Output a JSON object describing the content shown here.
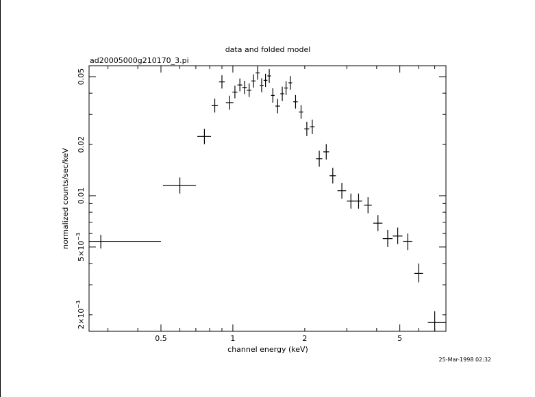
{
  "chart_data": {
    "type": "scatter",
    "title": "data and folded model",
    "subtitle": "ad20005000g210170_3.pi",
    "xlabel": "channel energy (keV)",
    "ylabel": "normalized counts/sec/keV",
    "timestamp": "25-Mar-1998 02:32",
    "x_scale": "log",
    "y_scale": "log",
    "xlim": [
      0.25,
      7.8
    ],
    "ylim": [
      0.0016,
      0.058
    ],
    "x_tick_labels": [
      {
        "value": 0.5,
        "label": "0.5"
      },
      {
        "value": 1,
        "label": "1"
      },
      {
        "value": 2,
        "label": "2"
      },
      {
        "value": 5,
        "label": "5"
      }
    ],
    "y_tick_labels": [
      {
        "value": 0.002,
        "mant": "2×10",
        "exp": "−3"
      },
      {
        "value": 0.005,
        "mant": "5×10",
        "exp": "−3"
      },
      {
        "value": 0.01,
        "label": "0.01"
      },
      {
        "value": 0.02,
        "label": "0.02"
      },
      {
        "value": 0.05,
        "label": "0.05"
      }
    ],
    "grid": false,
    "points": [
      {
        "x": 0.28,
        "xlo": 0.25,
        "xhi": 0.5,
        "y": 0.0054,
        "ylo": 0.0049,
        "yhi": 0.0059
      },
      {
        "x": 0.6,
        "xlo": 0.51,
        "xhi": 0.7,
        "y": 0.0115,
        "ylo": 0.0103,
        "yhi": 0.0128
      },
      {
        "x": 0.76,
        "xlo": 0.71,
        "xhi": 0.81,
        "y": 0.0223,
        "ylo": 0.0201,
        "yhi": 0.0247
      },
      {
        "x": 0.84,
        "xlo": 0.815,
        "xhi": 0.865,
        "y": 0.0338,
        "ylo": 0.0308,
        "yhi": 0.0372
      },
      {
        "x": 0.9,
        "xlo": 0.875,
        "xhi": 0.925,
        "y": 0.0466,
        "ylo": 0.0426,
        "yhi": 0.051
      },
      {
        "x": 0.97,
        "xlo": 0.935,
        "xhi": 1.005,
        "y": 0.0352,
        "ylo": 0.032,
        "yhi": 0.0387
      },
      {
        "x": 1.02,
        "xlo": 0.995,
        "xhi": 1.045,
        "y": 0.0406,
        "ylo": 0.0373,
        "yhi": 0.0443
      },
      {
        "x": 1.07,
        "xlo": 1.045,
        "xhi": 1.095,
        "y": 0.0447,
        "ylo": 0.041,
        "yhi": 0.0488
      },
      {
        "x": 1.12,
        "xlo": 1.095,
        "xhi": 1.145,
        "y": 0.0432,
        "ylo": 0.0395,
        "yhi": 0.0473
      },
      {
        "x": 1.17,
        "xlo": 1.145,
        "xhi": 1.195,
        "y": 0.0416,
        "ylo": 0.038,
        "yhi": 0.0456
      },
      {
        "x": 1.22,
        "xlo": 1.195,
        "xhi": 1.245,
        "y": 0.0472,
        "ylo": 0.0432,
        "yhi": 0.0516
      },
      {
        "x": 1.27,
        "xlo": 1.245,
        "xhi": 1.295,
        "y": 0.0526,
        "ylo": 0.048,
        "yhi": 0.0576
      },
      {
        "x": 1.32,
        "xlo": 1.295,
        "xhi": 1.345,
        "y": 0.0445,
        "ylo": 0.0405,
        "yhi": 0.0489
      },
      {
        "x": 1.37,
        "xlo": 1.345,
        "xhi": 1.395,
        "y": 0.0476,
        "ylo": 0.0435,
        "yhi": 0.052
      },
      {
        "x": 1.42,
        "xlo": 1.395,
        "xhi": 1.445,
        "y": 0.0505,
        "ylo": 0.046,
        "yhi": 0.0554
      },
      {
        "x": 1.47,
        "xlo": 1.445,
        "xhi": 1.495,
        "y": 0.0388,
        "ylo": 0.0352,
        "yhi": 0.0428
      },
      {
        "x": 1.54,
        "xlo": 1.505,
        "xhi": 1.575,
        "y": 0.0336,
        "ylo": 0.0305,
        "yhi": 0.037
      },
      {
        "x": 1.61,
        "xlo": 1.58,
        "xhi": 1.64,
        "y": 0.0397,
        "ylo": 0.036,
        "yhi": 0.0437
      },
      {
        "x": 1.67,
        "xlo": 1.64,
        "xhi": 1.7,
        "y": 0.0429,
        "ylo": 0.039,
        "yhi": 0.0471
      },
      {
        "x": 1.74,
        "xlo": 1.71,
        "xhi": 1.77,
        "y": 0.046,
        "ylo": 0.042,
        "yhi": 0.0504
      },
      {
        "x": 1.83,
        "xlo": 1.79,
        "xhi": 1.87,
        "y": 0.0356,
        "ylo": 0.0325,
        "yhi": 0.039
      },
      {
        "x": 1.93,
        "xlo": 1.89,
        "xhi": 1.97,
        "y": 0.031,
        "ylo": 0.0283,
        "yhi": 0.034
      },
      {
        "x": 2.04,
        "xlo": 1.99,
        "xhi": 2.09,
        "y": 0.0247,
        "ylo": 0.0224,
        "yhi": 0.0272
      },
      {
        "x": 2.15,
        "xlo": 2.1,
        "xhi": 2.2,
        "y": 0.0254,
        "ylo": 0.023,
        "yhi": 0.028
      },
      {
        "x": 2.3,
        "xlo": 2.23,
        "xhi": 2.37,
        "y": 0.0165,
        "ylo": 0.0148,
        "yhi": 0.0184
      },
      {
        "x": 2.46,
        "xlo": 2.39,
        "xhi": 2.53,
        "y": 0.0181,
        "ylo": 0.0163,
        "yhi": 0.0201
      },
      {
        "x": 2.62,
        "xlo": 2.54,
        "xhi": 2.7,
        "y": 0.0131,
        "ylo": 0.0118,
        "yhi": 0.0146
      },
      {
        "x": 2.86,
        "xlo": 2.74,
        "xhi": 2.98,
        "y": 0.0107,
        "ylo": 0.0096,
        "yhi": 0.0119
      },
      {
        "x": 3.12,
        "xlo": 3.0,
        "xhi": 3.24,
        "y": 0.0093,
        "ylo": 0.0084,
        "yhi": 0.0103
      },
      {
        "x": 3.36,
        "xlo": 3.24,
        "xhi": 3.48,
        "y": 0.0093,
        "ylo": 0.0084,
        "yhi": 0.0103
      },
      {
        "x": 3.68,
        "xlo": 3.54,
        "xhi": 3.82,
        "y": 0.0088,
        "ylo": 0.0079,
        "yhi": 0.0098
      },
      {
        "x": 4.05,
        "xlo": 3.87,
        "xhi": 4.23,
        "y": 0.0069,
        "ylo": 0.0062,
        "yhi": 0.0077
      },
      {
        "x": 4.45,
        "xlo": 4.24,
        "xhi": 4.66,
        "y": 0.0056,
        "ylo": 0.005,
        "yhi": 0.0063
      },
      {
        "x": 4.9,
        "xlo": 4.67,
        "xhi": 5.13,
        "y": 0.0058,
        "ylo": 0.0052,
        "yhi": 0.0065
      },
      {
        "x": 5.4,
        "xlo": 5.16,
        "xhi": 5.64,
        "y": 0.0054,
        "ylo": 0.0048,
        "yhi": 0.006
      },
      {
        "x": 6.0,
        "xlo": 5.75,
        "xhi": 6.25,
        "y": 0.0035,
        "ylo": 0.0031,
        "yhi": 0.004
      },
      {
        "x": 7.0,
        "xlo": 6.55,
        "xhi": 7.8,
        "y": 0.0018,
        "ylo": 0.0016,
        "yhi": 0.0021
      }
    ]
  }
}
